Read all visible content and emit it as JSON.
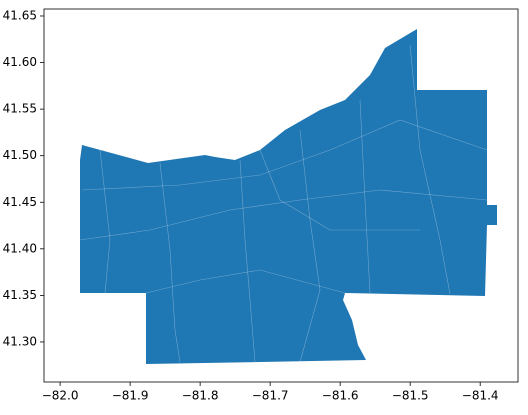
{
  "chart_data": {
    "type": "map",
    "color": "#1f77b4",
    "xlim": [
      -82.023,
      -81.346
    ],
    "ylim": [
      41.257,
      41.6575
    ],
    "xticks": [
      {
        "value": -82.0,
        "label": "−82.0"
      },
      {
        "value": -81.9,
        "label": "−81.9"
      },
      {
        "value": -81.8,
        "label": "−81.8"
      },
      {
        "value": -81.7,
        "label": "−81.7"
      },
      {
        "value": -81.6,
        "label": "−81.6"
      },
      {
        "value": -81.5,
        "label": "−81.5"
      },
      {
        "value": -81.4,
        "label": "−81.4"
      }
    ],
    "yticks": [
      {
        "value": 41.3,
        "label": "41.30"
      },
      {
        "value": 41.35,
        "label": "41.35"
      },
      {
        "value": 41.4,
        "label": "41.40"
      },
      {
        "value": 41.45,
        "label": "41.45"
      },
      {
        "value": 41.5,
        "label": "41.50"
      },
      {
        "value": 41.55,
        "label": "41.55"
      },
      {
        "value": 41.6,
        "label": "41.60"
      },
      {
        "value": 41.65,
        "label": "41.65"
      }
    ]
  }
}
